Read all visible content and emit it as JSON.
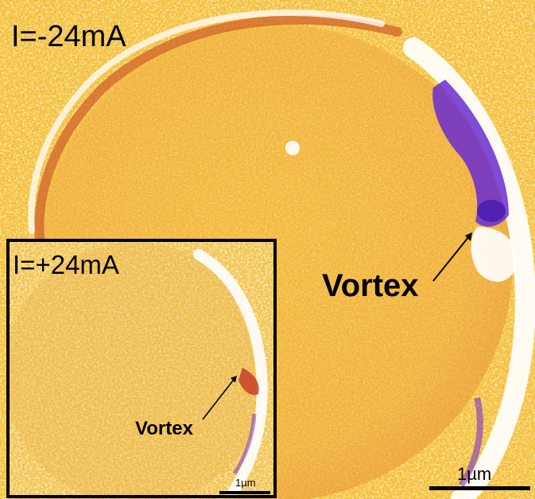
{
  "main_panel": {
    "current_label": "I=-24mA",
    "annotation": "Vortex",
    "scale_bar_label": "1µm"
  },
  "inset_panel": {
    "current_label": "I=+24mA",
    "annotation": "Vortex",
    "scale_bar_label": "1µm"
  },
  "colors": {
    "background_yellow": "#f7d23a",
    "texture_orange": "#e8902a",
    "texture_red": "#c9542a",
    "vortex_purple": "#6a2bd0",
    "highlight_white": "#ffffff",
    "frame_black": "#000000"
  }
}
